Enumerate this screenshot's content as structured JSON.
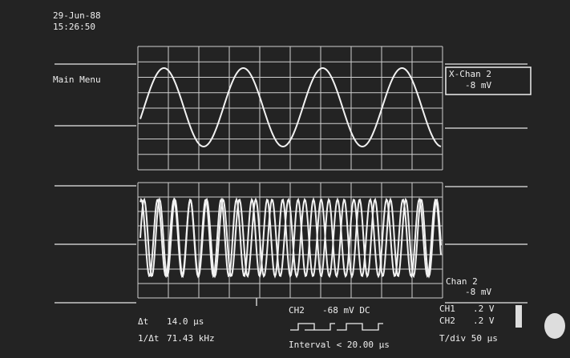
{
  "header": {
    "date": "29-Jun-88",
    "time": "15:26:50"
  },
  "menu": {
    "label": "Main Menu"
  },
  "upper_channel": {
    "label": "X-Chan 2",
    "offset": "-8 mV"
  },
  "lower_channel": {
    "label": "Chan 2",
    "offset": "-8 mV"
  },
  "measurements": {
    "delta_t_label": "Δt",
    "delta_t": "14.0 µs",
    "freq_label": "1/Δt",
    "freq": "71.43 kHz"
  },
  "trigger": {
    "channel": "CH2",
    "level": "-68 mV DC",
    "interval": "Interval < 20.00 µs"
  },
  "scales": {
    "ch1_label": "CH1",
    "ch1": ".2 V",
    "ch2_label": "CH2",
    "ch2": ".2 V",
    "timebase": "T/div 50 µs"
  }
}
